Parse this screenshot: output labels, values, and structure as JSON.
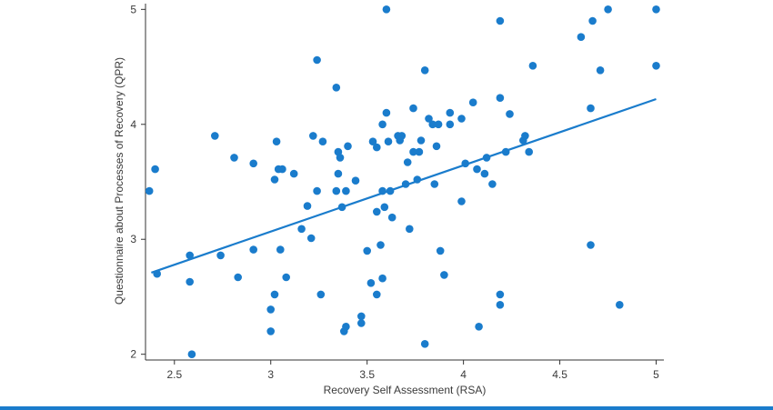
{
  "chart_data": {
    "type": "scatter",
    "title": "",
    "xlabel": "Recovery Self Assessment (RSA)",
    "ylabel": "Questionnaire about Processes of Recovery (QPR)",
    "xlim": [
      2.35,
      5.04
    ],
    "ylim": [
      1.95,
      5.05
    ],
    "xticks": [
      2.5,
      3,
      3.5,
      4,
      4.5,
      5
    ],
    "yticks": [
      2,
      3,
      4,
      5
    ],
    "xtick_labels": [
      "2.5",
      "3",
      "3.5",
      "4",
      "4.5",
      "5"
    ],
    "ytick_labels": [
      "2",
      "3",
      "4",
      "5"
    ],
    "grid": false,
    "legend": "none",
    "point_color": "#1a7ccc",
    "line_color": "#1a7ccc",
    "bottom_rule_color": "#1a7ccc",
    "trendline": {
      "x": [
        2.38,
        5.0
      ],
      "y": [
        2.71,
        4.22
      ]
    },
    "points": [
      [
        2.37,
        3.42
      ],
      [
        2.4,
        3.61
      ],
      [
        2.41,
        2.7
      ],
      [
        2.58,
        2.86
      ],
      [
        2.58,
        2.63
      ],
      [
        2.59,
        2.0
      ],
      [
        2.71,
        3.9
      ],
      [
        2.74,
        2.86
      ],
      [
        2.81,
        3.71
      ],
      [
        2.83,
        2.67
      ],
      [
        2.91,
        3.66
      ],
      [
        2.91,
        2.91
      ],
      [
        3.0,
        2.39
      ],
      [
        3.0,
        2.2
      ],
      [
        3.02,
        3.52
      ],
      [
        3.02,
        2.52
      ],
      [
        3.03,
        3.85
      ],
      [
        3.04,
        3.61
      ],
      [
        3.05,
        2.91
      ],
      [
        3.06,
        3.61
      ],
      [
        3.08,
        2.67
      ],
      [
        3.12,
        3.57
      ],
      [
        3.16,
        3.09
      ],
      [
        3.19,
        3.29
      ],
      [
        3.21,
        3.01
      ],
      [
        3.22,
        3.9
      ],
      [
        3.24,
        3.42
      ],
      [
        3.24,
        4.56
      ],
      [
        3.26,
        2.52
      ],
      [
        3.27,
        3.85
      ],
      [
        3.34,
        4.32
      ],
      [
        3.34,
        3.42
      ],
      [
        3.35,
        3.57
      ],
      [
        3.35,
        3.76
      ],
      [
        3.36,
        3.71
      ],
      [
        3.37,
        3.28
      ],
      [
        3.38,
        2.2
      ],
      [
        3.39,
        2.24
      ],
      [
        3.39,
        3.42
      ],
      [
        3.4,
        3.81
      ],
      [
        3.44,
        3.51
      ],
      [
        3.47,
        2.33
      ],
      [
        3.47,
        2.27
      ],
      [
        3.5,
        2.9
      ],
      [
        3.52,
        2.62
      ],
      [
        3.53,
        3.85
      ],
      [
        3.55,
        3.24
      ],
      [
        3.55,
        2.52
      ],
      [
        3.55,
        3.8
      ],
      [
        3.57,
        2.95
      ],
      [
        3.58,
        2.66
      ],
      [
        3.58,
        3.42
      ],
      [
        3.58,
        4.0
      ],
      [
        3.59,
        3.28
      ],
      [
        3.6,
        5.0
      ],
      [
        3.6,
        4.1
      ],
      [
        3.61,
        3.85
      ],
      [
        3.62,
        3.42
      ],
      [
        3.63,
        3.19
      ],
      [
        3.66,
        3.9
      ],
      [
        3.67,
        3.86
      ],
      [
        3.68,
        3.9
      ],
      [
        3.7,
        3.48
      ],
      [
        3.71,
        3.67
      ],
      [
        3.72,
        3.09
      ],
      [
        3.74,
        4.14
      ],
      [
        3.74,
        3.76
      ],
      [
        3.76,
        3.52
      ],
      [
        3.77,
        3.76
      ],
      [
        3.78,
        3.86
      ],
      [
        3.8,
        4.47
      ],
      [
        3.8,
        2.09
      ],
      [
        3.82,
        4.05
      ],
      [
        3.84,
        4.0
      ],
      [
        3.85,
        3.48
      ],
      [
        3.86,
        3.81
      ],
      [
        3.87,
        4.0
      ],
      [
        3.88,
        2.9
      ],
      [
        3.9,
        2.69
      ],
      [
        3.93,
        4.1
      ],
      [
        3.93,
        4.0
      ],
      [
        3.99,
        3.33
      ],
      [
        3.99,
        4.05
      ],
      [
        4.01,
        3.66
      ],
      [
        4.05,
        4.19
      ],
      [
        4.07,
        3.61
      ],
      [
        4.08,
        2.24
      ],
      [
        4.11,
        3.57
      ],
      [
        4.12,
        3.71
      ],
      [
        4.15,
        3.48
      ],
      [
        4.19,
        4.9
      ],
      [
        4.19,
        4.23
      ],
      [
        4.19,
        2.52
      ],
      [
        4.19,
        2.43
      ],
      [
        4.22,
        3.76
      ],
      [
        4.24,
        4.09
      ],
      [
        4.31,
        3.86
      ],
      [
        4.32,
        3.9
      ],
      [
        4.34,
        3.76
      ],
      [
        4.36,
        4.51
      ],
      [
        4.61,
        4.76
      ],
      [
        4.66,
        4.14
      ],
      [
        4.66,
        2.95
      ],
      [
        4.67,
        4.9
      ],
      [
        4.71,
        4.47
      ],
      [
        4.75,
        5.0
      ],
      [
        4.81,
        2.43
      ],
      [
        5.0,
        5.0
      ],
      [
        5.0,
        4.51
      ]
    ]
  }
}
